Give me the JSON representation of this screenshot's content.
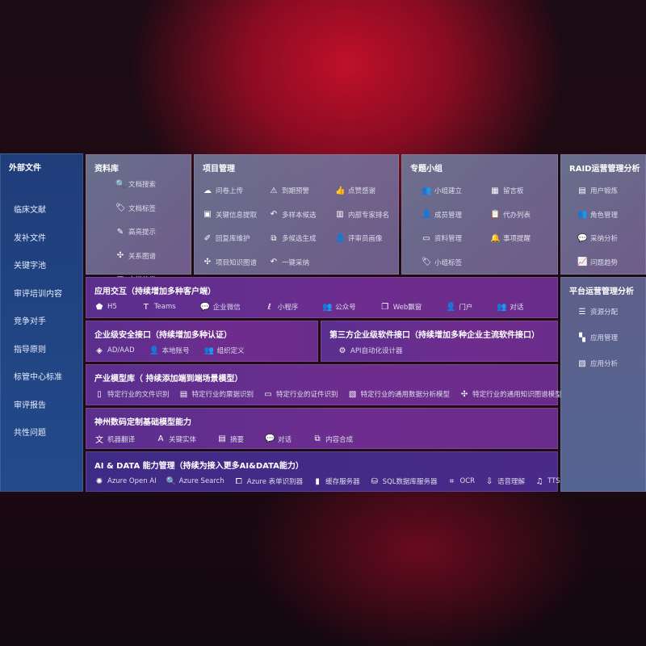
{
  "external": {
    "title": "外部文件",
    "items": [
      "临床文献",
      "发补文件",
      "关键字池",
      "审评培训内容",
      "竞争对手",
      "指导原则",
      "标管中心标准",
      "审评报告",
      "共性问题"
    ]
  },
  "library": {
    "title": "资料库",
    "items": [
      {
        "icon": "file-search-icon",
        "g": "🔍",
        "label": "文档搜索"
      },
      {
        "icon": "tag-icon",
        "g": "🏷",
        "label": "文档标签"
      },
      {
        "icon": "pen-icon",
        "g": "✎",
        "label": "高亮提示"
      },
      {
        "icon": "graph-icon",
        "g": "✣",
        "label": "关系图谱"
      },
      {
        "icon": "document-icon",
        "g": "▤",
        "label": "文档分类"
      }
    ]
  },
  "project": {
    "title": "项目管理",
    "items": [
      {
        "icon": "cloud-upload-icon",
        "g": "☁",
        "label": "问卷上传"
      },
      {
        "icon": "alarm-icon",
        "g": "⚠",
        "label": "到期预警"
      },
      {
        "icon": "thumbs-up-icon",
        "g": "👍",
        "label": "点赞感谢"
      },
      {
        "icon": "window-icon",
        "g": "▣",
        "label": "关键信息提取"
      },
      {
        "icon": "reply-icon",
        "g": "↶",
        "label": "多样本候选"
      },
      {
        "icon": "ranking-icon",
        "g": "▥",
        "label": "内部专家排名"
      },
      {
        "icon": "edit-icon",
        "g": "✐",
        "label": "回复库维护"
      },
      {
        "icon": "puzzle-icon",
        "g": "⧉",
        "label": "多候选生成"
      },
      {
        "icon": "user-icon",
        "g": "👤",
        "label": "评审员画像"
      },
      {
        "icon": "knowledge-graph-icon",
        "g": "✣",
        "label": "项目知识图谱"
      },
      {
        "icon": "reply-icon",
        "g": "↶",
        "label": "一键采纳"
      }
    ]
  },
  "group": {
    "title": "专题小组",
    "items": [
      {
        "icon": "users-icon",
        "g": "👥",
        "label": "小组建立"
      },
      {
        "icon": "bbs-icon",
        "g": "▦",
        "label": "留言板"
      },
      {
        "icon": "user-add-icon",
        "g": "👤",
        "label": "成员管理"
      },
      {
        "icon": "clipboard-icon",
        "g": "📋",
        "label": "代办列表"
      },
      {
        "icon": "folder-icon",
        "g": "▭",
        "label": "资料管理"
      },
      {
        "icon": "bell-icon",
        "g": "🔔",
        "label": "事项提醒"
      },
      {
        "icon": "tag-icon",
        "g": "🏷",
        "label": "小组标签"
      }
    ]
  },
  "raid": {
    "title": "RAID运营管理分析",
    "items": [
      {
        "icon": "id-card-icon",
        "g": "▤",
        "label": "用户锻炼"
      },
      {
        "icon": "users-icon",
        "g": "👥",
        "label": "角色管理"
      },
      {
        "icon": "qa-icon",
        "g": "💬",
        "label": "采纳分析"
      },
      {
        "icon": "chart-trend-icon",
        "g": "📈",
        "label": "问题趋势"
      }
    ]
  },
  "platform": {
    "title": "平台运营管理分析",
    "items": [
      {
        "icon": "list-icon",
        "g": "☰",
        "label": "资源分配"
      },
      {
        "icon": "apps-icon",
        "g": "▚",
        "label": "应用管理"
      },
      {
        "icon": "analysis-icon",
        "g": "▧",
        "label": "应用分析"
      }
    ]
  },
  "apps": {
    "title": "应用交互（持续增加多种客户端）",
    "items": [
      {
        "icon": "html5-icon",
        "g": "⬟",
        "label": "H5"
      },
      {
        "icon": "teams-icon",
        "g": "T",
        "label": "Teams"
      },
      {
        "icon": "wechat-work-icon",
        "g": "💬",
        "label": "企业微信"
      },
      {
        "icon": "mini-program-icon",
        "g": "ℓ",
        "label": "小程序"
      },
      {
        "icon": "users-icon",
        "g": "👥",
        "label": "公众号"
      },
      {
        "icon": "web-window-icon",
        "g": "❐",
        "label": "Web飘窗"
      },
      {
        "icon": "portal-icon",
        "g": "👤",
        "label": "门户"
      },
      {
        "icon": "chat-icon",
        "g": "👥",
        "label": "对话"
      }
    ]
  },
  "security": {
    "title": "企业级安全接口（持续增加多种认证）",
    "items": [
      {
        "icon": "ad-icon",
        "g": "◈",
        "label": "AD/AAD"
      },
      {
        "icon": "local-account-icon",
        "g": "👤",
        "label": "本地账号"
      },
      {
        "icon": "org-icon",
        "g": "👥",
        "label": "组织定义"
      }
    ]
  },
  "thirdparty": {
    "title": "第三方企业级软件接口（持续增加多种企业主流软件接口）",
    "items": [
      {
        "icon": "gear-icon",
        "g": "⚙",
        "label": "API自动化设计器"
      }
    ]
  },
  "industry": {
    "title": "产业模型库（ 持续添加端到端场景模型）",
    "items": [
      {
        "icon": "file-icon",
        "g": "▯",
        "label": "特定行业的文件识别"
      },
      {
        "icon": "receipt-icon",
        "g": "▤",
        "label": "特定行业的票据识别"
      },
      {
        "icon": "id-card-icon",
        "g": "▭",
        "label": "特定行业的证件识别"
      },
      {
        "icon": "data-analysis-icon",
        "g": "▧",
        "label": "特定行业的通用数据分析模型"
      },
      {
        "icon": "knowledge-graph-icon",
        "g": "✣",
        "label": "特定行业的通用知识图谱模型"
      }
    ]
  },
  "base": {
    "title": "神州数码定制基础模型能力",
    "items": [
      {
        "icon": "translate-icon",
        "g": "文",
        "label": "机器翻译"
      },
      {
        "icon": "entity-icon",
        "g": "A",
        "label": "关键实体"
      },
      {
        "icon": "summary-icon",
        "g": "▤",
        "label": "摘要"
      },
      {
        "icon": "chat-icon",
        "g": "💬",
        "label": "对话"
      },
      {
        "icon": "compose-icon",
        "g": "⧉",
        "label": "内容合成"
      }
    ]
  },
  "aidata": {
    "title": "AI & DATA 能力管理（持续为接入更多AI&DATA能力）",
    "items": [
      {
        "icon": "openai-icon",
        "g": "✺",
        "label": "Azure Open AI"
      },
      {
        "icon": "search-icon",
        "g": "🔍",
        "label": "Azure Search"
      },
      {
        "icon": "form-recognizer-icon",
        "g": "⧠",
        "label": "Azure 表单识别器"
      },
      {
        "icon": "cache-server-icon",
        "g": "▮",
        "label": "缓存服务器"
      },
      {
        "icon": "sql-database-icon",
        "g": "⛁",
        "label": "SQL数据库服务器"
      },
      {
        "icon": "ocr-icon",
        "g": "⌗",
        "label": "OCR"
      },
      {
        "icon": "speech-icon",
        "g": "⇩",
        "label": "语音理解"
      },
      {
        "icon": "tts-icon",
        "g": "♫",
        "label": "TTS"
      }
    ]
  }
}
